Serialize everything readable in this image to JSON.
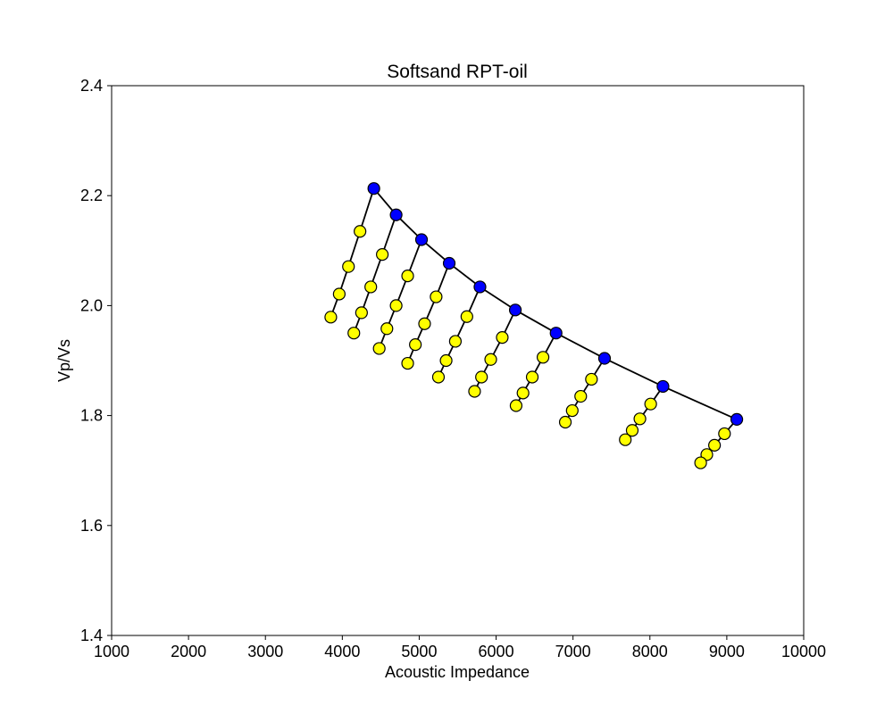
{
  "chart_data": {
    "type": "scatter",
    "title": "Softsand RPT-oil",
    "xlabel": "Acoustic Impedance",
    "ylabel": "Vp/Vs",
    "xlim": [
      1000,
      10000
    ],
    "ylim": [
      1.4,
      2.4
    ],
    "xticks": [
      1000,
      2000,
      3000,
      4000,
      5000,
      6000,
      7000,
      8000,
      9000,
      10000
    ],
    "yticks": [
      1.4,
      1.6,
      1.8,
      2.0,
      2.2,
      2.4
    ],
    "grid": false,
    "colors": {
      "dry_marker": "#0000ff",
      "wet_marker": "#ffff00",
      "line": "#000000",
      "edge": "#000000"
    },
    "main_curve": [
      [
        4410,
        2.213
      ],
      [
        4700,
        2.165
      ],
      [
        5030,
        2.12
      ],
      [
        5390,
        2.077
      ],
      [
        5790,
        2.034
      ],
      [
        6250,
        1.992
      ],
      [
        6780,
        1.95
      ],
      [
        7410,
        1.904
      ],
      [
        8170,
        1.853
      ],
      [
        9130,
        1.793
      ]
    ],
    "branches": [
      [
        [
          4410,
          2.213
        ],
        [
          4230,
          2.135
        ],
        [
          4080,
          2.071
        ],
        [
          3960,
          2.021
        ],
        [
          3850,
          1.979
        ]
      ],
      [
        [
          4700,
          2.165
        ],
        [
          4520,
          2.093
        ],
        [
          4370,
          2.034
        ],
        [
          4250,
          1.987
        ],
        [
          4150,
          1.95
        ]
      ],
      [
        [
          5030,
          2.12
        ],
        [
          4850,
          2.054
        ],
        [
          4700,
          2.0
        ],
        [
          4580,
          1.958
        ],
        [
          4480,
          1.922
        ]
      ],
      [
        [
          5390,
          2.077
        ],
        [
          5220,
          2.016
        ],
        [
          5070,
          1.967
        ],
        [
          4950,
          1.929
        ],
        [
          4850,
          1.895
        ]
      ],
      [
        [
          5790,
          2.034
        ],
        [
          5620,
          1.98
        ],
        [
          5470,
          1.935
        ],
        [
          5350,
          1.9
        ],
        [
          5250,
          1.87
        ]
      ],
      [
        [
          6250,
          1.992
        ],
        [
          6080,
          1.942
        ],
        [
          5930,
          1.902
        ],
        [
          5810,
          1.87
        ],
        [
          5720,
          1.844
        ]
      ],
      [
        [
          6780,
          1.95
        ],
        [
          6610,
          1.906
        ],
        [
          6470,
          1.87
        ],
        [
          6350,
          1.841
        ],
        [
          6260,
          1.818
        ]
      ],
      [
        [
          7410,
          1.904
        ],
        [
          7240,
          1.866
        ],
        [
          7100,
          1.835
        ],
        [
          6990,
          1.809
        ],
        [
          6900,
          1.788
        ]
      ],
      [
        [
          8170,
          1.853
        ],
        [
          8010,
          1.821
        ],
        [
          7870,
          1.794
        ],
        [
          7770,
          1.773
        ],
        [
          7680,
          1.756
        ]
      ],
      [
        [
          9130,
          1.793
        ],
        [
          8970,
          1.767
        ],
        [
          8840,
          1.746
        ],
        [
          8740,
          1.729
        ],
        [
          8660,
          1.714
        ]
      ]
    ]
  }
}
